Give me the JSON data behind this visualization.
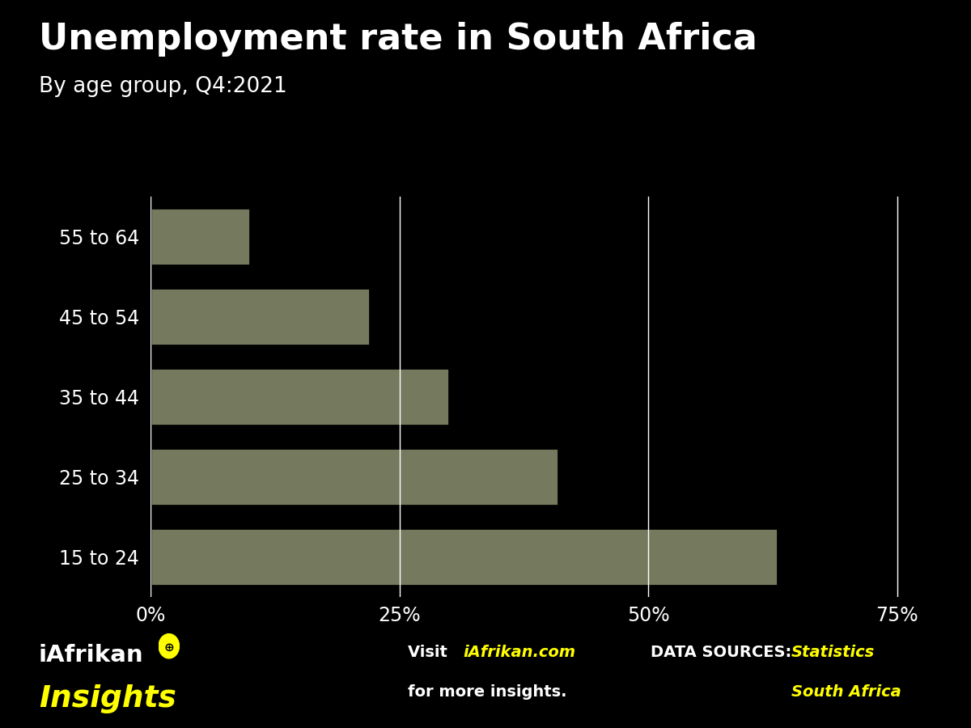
{
  "title": "Unemployment rate in South Africa",
  "subtitle": "By age group, Q4:2021",
  "categories": [
    "15 to 24",
    "25 to 34",
    "35 to 44",
    "45 to 54",
    "55 to 64"
  ],
  "values": [
    63.0,
    41.0,
    30.0,
    22.0,
    10.0
  ],
  "bar_color": "#757a5e",
  "background_color": "#000000",
  "text_color": "#ffffff",
  "title_fontsize": 32,
  "subtitle_fontsize": 19,
  "tick_fontsize": 17,
  "label_fontsize": 17,
  "xlim": [
    0,
    80
  ],
  "xticks": [
    0,
    25,
    50,
    75
  ],
  "xtick_labels": [
    "0%",
    "25%",
    "50%",
    "75%"
  ],
  "grid_color": "#ffffff",
  "footer_yellow": "#ffff00"
}
